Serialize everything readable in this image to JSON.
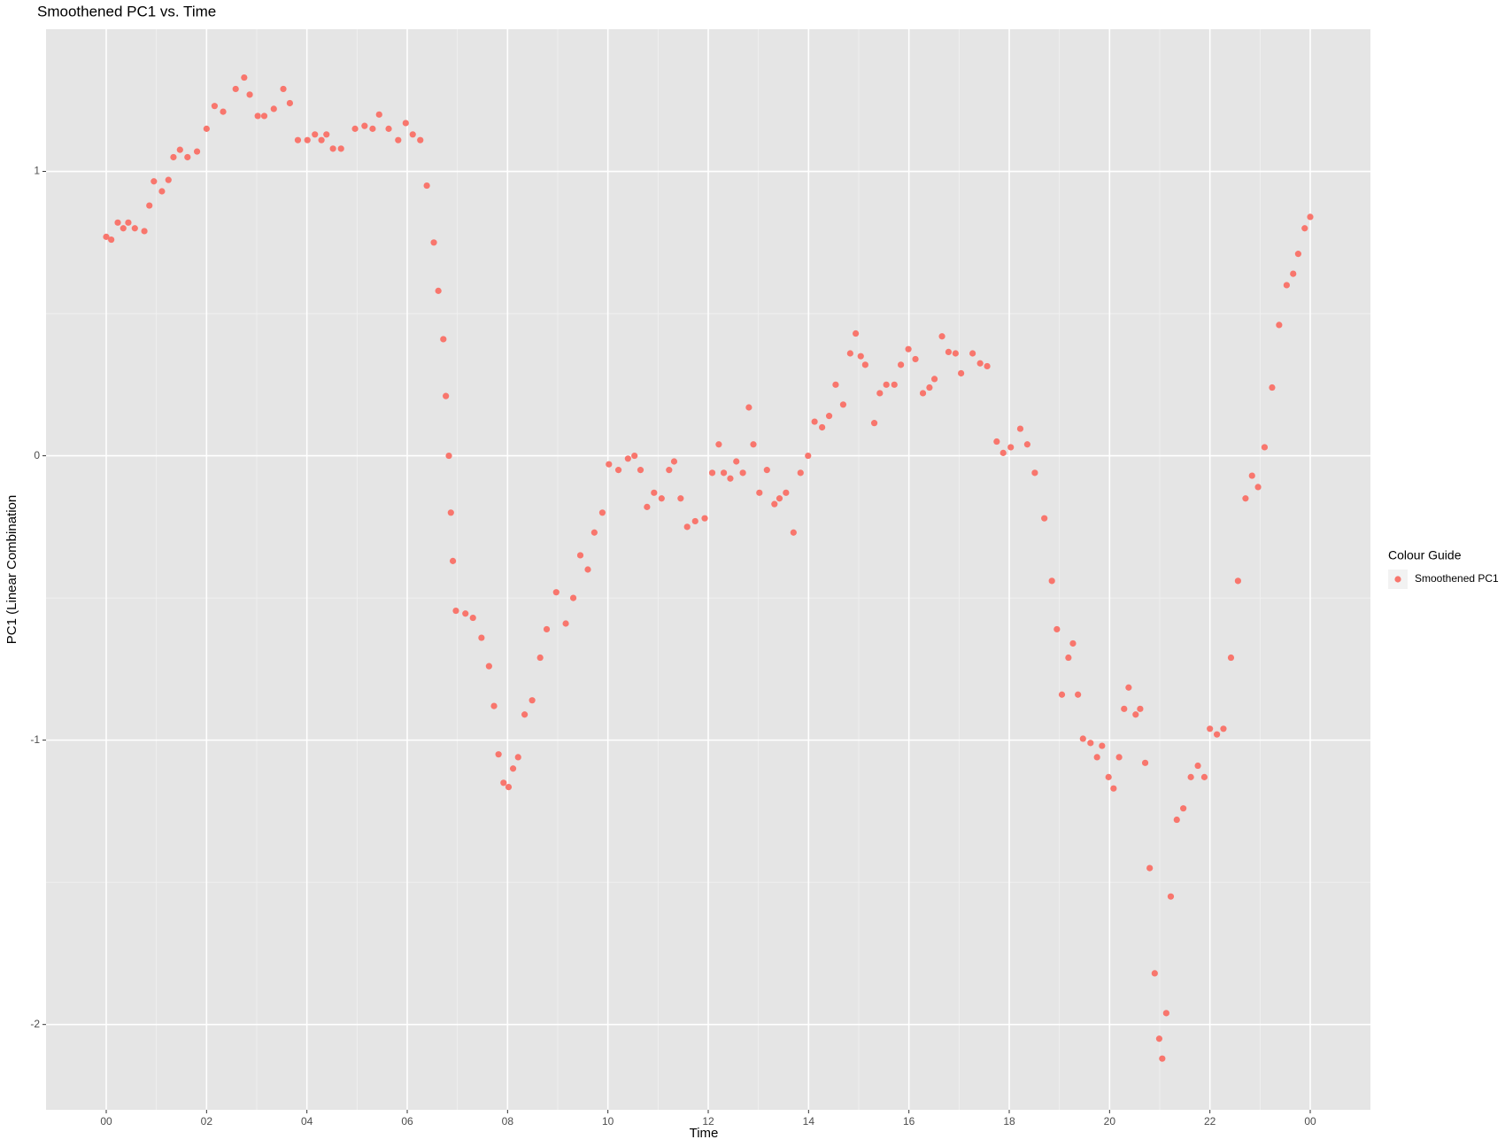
{
  "chart_data": {
    "type": "scatter",
    "title": "Smoothened PC1 vs. Time",
    "x_label": "Time",
    "y_label": "PC1 (Linear Combination",
    "legend_title": "Colour Guide",
    "legend_position": "right",
    "grid": true,
    "xlim": [
      -1.2,
      25.2
    ],
    "ylim": [
      -2.3,
      1.5
    ],
    "xticks": [
      {
        "value": 0,
        "label": "00"
      },
      {
        "value": 2,
        "label": "02"
      },
      {
        "value": 4,
        "label": "04"
      },
      {
        "value": 6,
        "label": "06"
      },
      {
        "value": 8,
        "label": "08"
      },
      10,
      12,
      14,
      16,
      18,
      20,
      22,
      {
        "value": 24,
        "label": "00"
      }
    ],
    "yticks": [
      -2,
      -1,
      0,
      1
    ],
    "x": [
      0.0,
      0.1,
      0.23,
      0.34,
      0.44,
      0.57,
      0.76,
      0.86,
      0.95,
      1.11,
      1.24,
      1.34,
      1.47,
      1.62,
      1.81,
      2.0,
      2.16,
      2.33,
      2.58,
      2.75,
      2.86,
      3.02,
      3.15,
      3.34,
      3.53,
      3.66,
      3.82,
      4.01,
      4.16,
      4.29,
      4.39,
      4.52,
      4.68,
      4.96,
      5.15,
      5.31,
      5.44,
      5.63,
      5.82,
      5.97,
      6.11,
      6.26,
      6.39,
      6.53,
      6.62,
      6.72,
      6.77,
      6.83,
      6.87,
      6.91,
      6.97,
      7.16,
      7.31,
      7.48,
      7.63,
      7.73,
      7.82,
      7.92,
      8.02,
      8.11,
      8.21,
      8.34,
      8.49,
      8.65,
      8.78,
      8.97,
      9.16,
      9.31,
      9.45,
      9.6,
      9.73,
      9.89,
      10.02,
      10.21,
      10.4,
      10.53,
      10.65,
      10.78,
      10.92,
      11.07,
      11.22,
      11.32,
      11.45,
      11.58,
      11.74,
      11.93,
      12.08,
      12.21,
      12.31,
      12.44,
      12.56,
      12.69,
      12.81,
      12.9,
      13.02,
      13.17,
      13.32,
      13.42,
      13.55,
      13.7,
      13.84,
      13.99,
      14.12,
      14.27,
      14.41,
      14.54,
      14.69,
      14.83,
      14.94,
      15.04,
      15.13,
      15.31,
      15.42,
      15.55,
      15.71,
      15.84,
      15.99,
      16.13,
      16.28,
      16.41,
      16.51,
      16.66,
      16.79,
      16.93,
      17.04,
      17.27,
      17.42,
      17.56,
      17.75,
      17.88,
      18.03,
      18.22,
      18.36,
      18.51,
      18.7,
      18.85,
      18.95,
      19.05,
      19.18,
      19.27,
      19.37,
      19.47,
      19.62,
      19.75,
      19.85,
      19.98,
      20.08,
      20.19,
      20.29,
      20.38,
      20.52,
      20.61,
      20.71,
      20.8,
      20.9,
      20.99,
      21.05,
      21.13,
      21.22,
      21.34,
      21.47,
      21.62,
      21.76,
      21.89,
      22.0,
      22.14,
      22.27,
      22.42,
      22.56,
      22.71,
      22.84,
      22.96,
      23.09,
      23.24,
      23.38,
      23.53,
      23.66,
      23.76,
      23.89,
      24.0
    ],
    "series": [
      {
        "name": "Smoothened PC1",
        "color": "#F8766D",
        "values": [
          0.77,
          0.76,
          0.82,
          0.8,
          0.82,
          0.8,
          0.79,
          0.88,
          0.965,
          0.93,
          0.97,
          1.05,
          1.076,
          1.05,
          1.07,
          1.15,
          1.23,
          1.21,
          1.29,
          1.33,
          1.27,
          1.195,
          1.195,
          1.22,
          1.29,
          1.24,
          1.11,
          1.11,
          1.13,
          1.11,
          1.13,
          1.08,
          1.08,
          1.15,
          1.16,
          1.15,
          1.2,
          1.15,
          1.11,
          1.17,
          1.13,
          1.11,
          0.95,
          0.75,
          0.58,
          0.41,
          0.21,
          0.0,
          -0.2,
          -0.37,
          -0.545,
          -0.555,
          -0.57,
          -0.64,
          -0.74,
          -0.88,
          -1.05,
          -1.15,
          -1.165,
          -1.1,
          -1.06,
          -0.91,
          -0.86,
          -0.71,
          -0.61,
          -0.48,
          -0.59,
          -0.5,
          -0.35,
          -0.4,
          -0.27,
          -0.2,
          -0.03,
          -0.05,
          -0.01,
          0.0,
          -0.05,
          -0.18,
          -0.13,
          -0.15,
          -0.05,
          -0.02,
          -0.15,
          -0.25,
          -0.23,
          -0.22,
          -0.06,
          0.04,
          -0.06,
          -0.08,
          -0.02,
          -0.06,
          0.17,
          0.04,
          -0.13,
          -0.05,
          -0.17,
          -0.15,
          -0.13,
          -0.27,
          -0.06,
          0.0,
          0.12,
          0.1,
          0.14,
          0.25,
          0.18,
          0.36,
          0.43,
          0.35,
          0.32,
          0.115,
          0.22,
          0.25,
          0.25,
          0.32,
          0.375,
          0.34,
          0.22,
          0.24,
          0.27,
          0.42,
          0.365,
          0.36,
          0.29,
          0.36,
          0.325,
          0.315,
          0.05,
          0.01,
          0.03,
          0.095,
          0.04,
          -0.06,
          -0.22,
          -0.44,
          -0.61,
          -0.84,
          -0.71,
          -0.66,
          -0.84,
          -0.995,
          -1.01,
          -1.06,
          -1.02,
          -1.13,
          -1.17,
          -1.06,
          -0.89,
          -0.815,
          -0.91,
          -0.89,
          -1.08,
          -1.45,
          -1.82,
          -2.05,
          -2.12,
          -1.96,
          -1.55,
          -1.28,
          -1.24,
          -1.13,
          -1.09,
          -1.13,
          -0.96,
          -0.98,
          -0.96,
          -0.71,
          -0.44,
          -0.15,
          -0.07,
          -0.11,
          0.03,
          0.24,
          0.46,
          0.6,
          0.64,
          0.71,
          0.8,
          0.84
        ]
      }
    ]
  }
}
